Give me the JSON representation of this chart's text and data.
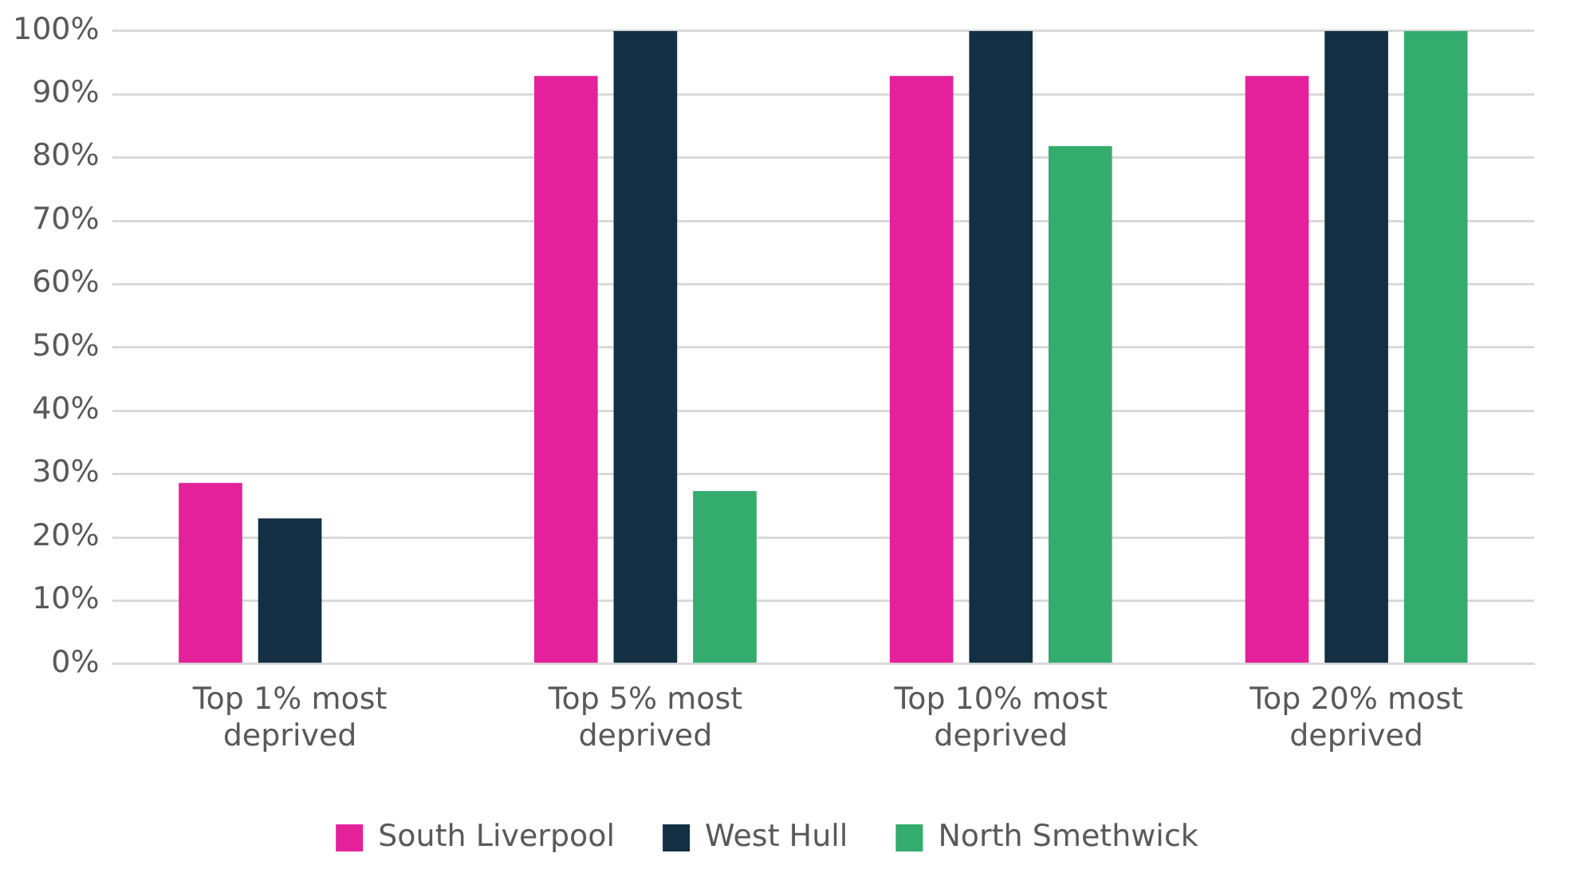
{
  "chart_data": {
    "type": "bar",
    "categories": [
      "Top 1% most deprived",
      "Top 5% most deprived",
      "Top 10% most deprived",
      "Top 20% most deprived"
    ],
    "series": [
      {
        "name": "South Liverpool",
        "color": "#e4219b",
        "values": [
          28.6,
          92.9,
          92.9,
          92.9
        ]
      },
      {
        "name": "West Hull",
        "color": "#132f43",
        "values": [
          23,
          100,
          100,
          100
        ]
      },
      {
        "name": "North Smethwick",
        "color": "#33ac6e",
        "values": [
          0,
          27.3,
          81.8,
          100
        ]
      }
    ],
    "ylim": [
      0,
      100
    ],
    "yticks": [
      {
        "value": 0,
        "label": "0%"
      },
      {
        "value": 10,
        "label": "10%"
      },
      {
        "value": 20,
        "label": "20%"
      },
      {
        "value": 30,
        "label": "30%"
      },
      {
        "value": 40,
        "label": "40%"
      },
      {
        "value": 50,
        "label": "50%"
      },
      {
        "value": 60,
        "label": "60%"
      },
      {
        "value": 70,
        "label": "70%"
      },
      {
        "value": 80,
        "label": "80%"
      },
      {
        "value": 90,
        "label": "90%"
      },
      {
        "value": 100,
        "label": "100%"
      }
    ],
    "grid": "y",
    "legend": "bottom"
  }
}
